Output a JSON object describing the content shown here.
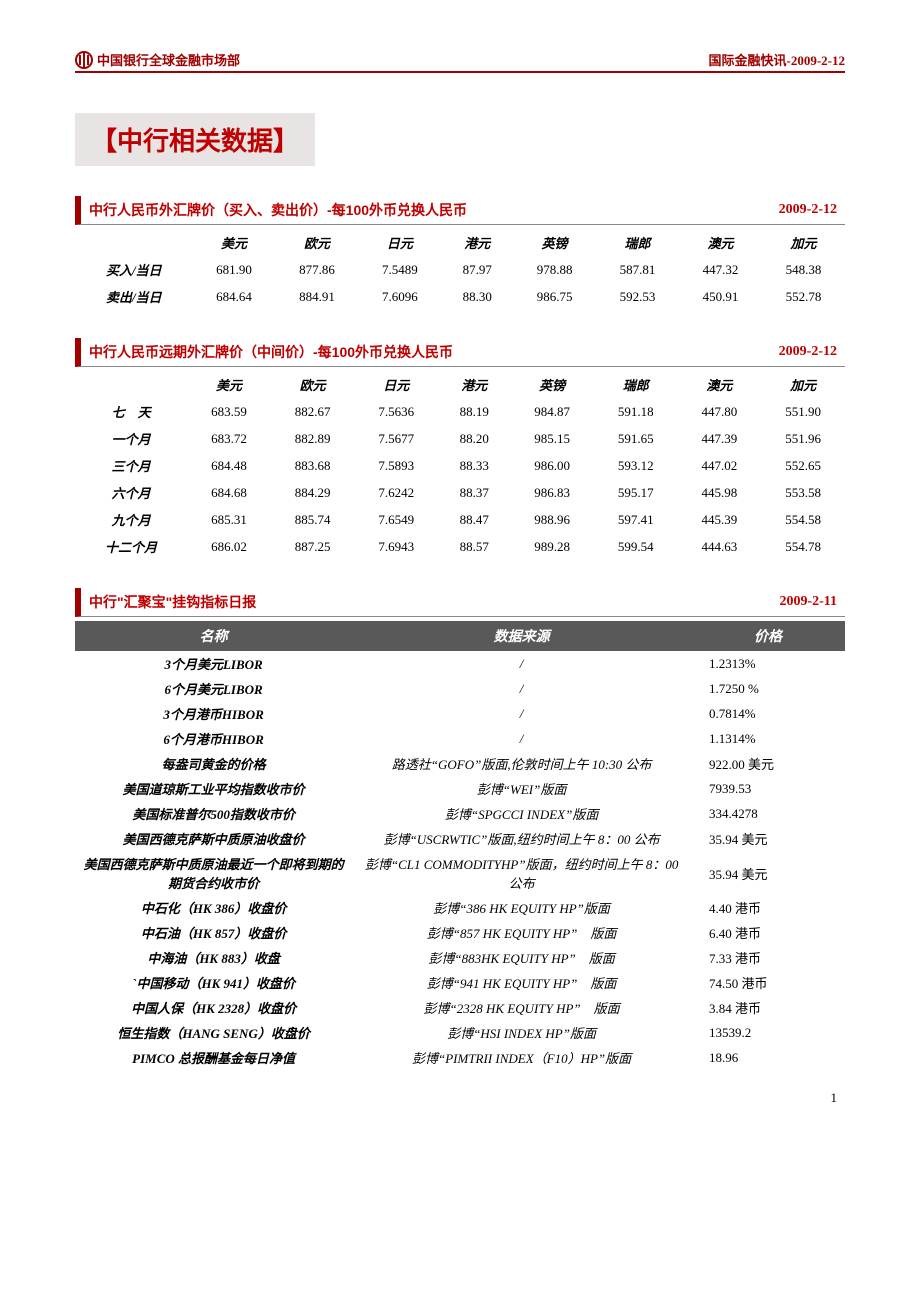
{
  "header": {
    "left": "中国银行全球金融市场部",
    "right": "国际金融快讯-2009-2-12"
  },
  "title": "【中行相关数据】",
  "fx_spot": {
    "title": "中行人民币外汇牌价（买入、卖出价）-每100外币兑换人民币",
    "date": "2009-2-12",
    "cols": [
      "美元",
      "欧元",
      "日元",
      "港元",
      "英镑",
      "瑞郎",
      "澳元",
      "加元"
    ],
    "rows": [
      {
        "label": "买入/当日",
        "v": [
          "681.90",
          "877.86",
          "7.5489",
          "87.97",
          "978.88",
          "587.81",
          "447.32",
          "548.38"
        ]
      },
      {
        "label": "卖出/当日",
        "v": [
          "684.64",
          "884.91",
          "7.6096",
          "88.30",
          "986.75",
          "592.53",
          "450.91",
          "552.78"
        ]
      }
    ]
  },
  "fx_fwd": {
    "title": "中行人民币远期外汇牌价（中间价）-每100外币兑换人民币",
    "date": "2009-2-12",
    "cols": [
      "美元",
      "欧元",
      "日元",
      "港元",
      "英镑",
      "瑞郎",
      "澳元",
      "加元"
    ],
    "rows": [
      {
        "label": "七　天",
        "v": [
          "683.59",
          "882.67",
          "7.5636",
          "88.19",
          "984.87",
          "591.18",
          "447.80",
          "551.90"
        ]
      },
      {
        "label": "一个月",
        "v": [
          "683.72",
          "882.89",
          "7.5677",
          "88.20",
          "985.15",
          "591.65",
          "447.39",
          "551.96"
        ]
      },
      {
        "label": "三个月",
        "v": [
          "684.48",
          "883.68",
          "7.5893",
          "88.33",
          "986.00",
          "593.12",
          "447.02",
          "552.65"
        ]
      },
      {
        "label": "六个月",
        "v": [
          "684.68",
          "884.29",
          "7.6242",
          "88.37",
          "986.83",
          "595.17",
          "445.98",
          "553.58"
        ]
      },
      {
        "label": "九个月",
        "v": [
          "685.31",
          "885.74",
          "7.6549",
          "88.47",
          "988.96",
          "597.41",
          "445.39",
          "554.58"
        ]
      },
      {
        "label": "十二个月",
        "v": [
          "686.02",
          "887.25",
          "7.6943",
          "88.57",
          "989.28",
          "599.54",
          "444.63",
          "554.78"
        ]
      }
    ]
  },
  "hjb": {
    "title": "中行\"汇聚宝\"挂钩指标日报",
    "date": "2009-2-11",
    "headers": {
      "name": "名称",
      "src": "数据来源",
      "price": "价格"
    },
    "rows": [
      {
        "name": "3个月美元LIBOR",
        "src": "/",
        "price": "1.2313%"
      },
      {
        "name": "6个月美元LIBOR",
        "src": "/",
        "price": "1.7250 %"
      },
      {
        "name": "3个月港币HIBOR",
        "src": "/",
        "price": "0.7814%"
      },
      {
        "name": "6个月港币HIBOR",
        "src": "/",
        "price": "1.1314%"
      },
      {
        "name": "每盎司黄金的价格",
        "src": "路透社“GOFO”版面,伦敦时间上午 10:30 公布",
        "price": "922.00 美元"
      },
      {
        "name": "美国道琼斯工业平均指数收市价",
        "src": "彭博“WEI”版面",
        "price": "7939.53"
      },
      {
        "name": "美国标准普尔500指数收市价",
        "src": "彭博“SPGCCI INDEX”版面",
        "price": "334.4278"
      },
      {
        "name": "美国西德克萨斯中质原油收盘价",
        "src": "彭博“USCRWTIC”版面,纽约时间上午 8：00 公布",
        "price": "35.94 美元"
      },
      {
        "name": "美国西德克萨斯中质原油最近一个即将到期的期货合约收市价",
        "src": "彭博“CL1 COMMODITYHP”版面，纽约时间上午 8：00 公布",
        "price": "35.94 美元"
      },
      {
        "name": "中石化（HK 386）收盘价",
        "src": "彭博“386 HK EQUITY HP”版面",
        "price": "4.40 港币"
      },
      {
        "name": "中石油（HK 857）收盘价",
        "src": "彭博“857 HK EQUITY HP”　版面",
        "price": "6.40 港币"
      },
      {
        "name": "中海油（HK 883）收盘",
        "src": "彭博“883HK EQUITY HP”　版面",
        "price": "7.33 港币"
      },
      {
        "name": "`中国移动（HK 941）收盘价",
        "src": "彭博“941 HK EQUITY HP”　版面",
        "price": "74.50 港币"
      },
      {
        "name": "中国人保（HK 2328）收盘价",
        "src": "彭博“2328 HK EQUITY HP”　版面",
        "price": "3.84 港币"
      },
      {
        "name": "恒生指数（HANG SENG）收盘价",
        "src": "彭博“HSI INDEX HP”版面",
        "price": "13539.2"
      },
      {
        "name": "PIMCO 总报酬基金每日净值",
        "src": "彭博“PIMTRII INDEX（F10）HP”版面",
        "price": "18.96"
      }
    ]
  },
  "page_num": "1"
}
